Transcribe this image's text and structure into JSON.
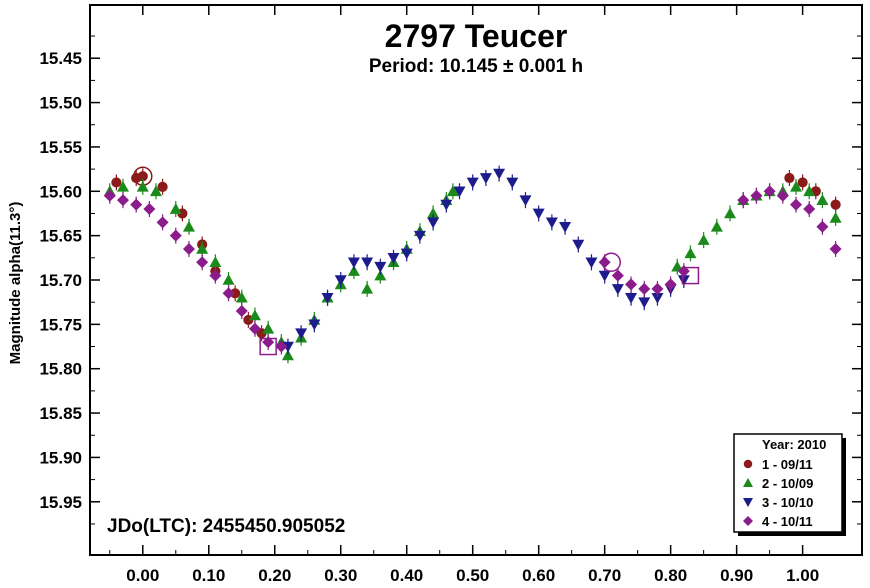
{
  "chart_data": {
    "type": "scatter",
    "title": "2797 Teucer",
    "subtitle": "Period: 10.145 ± 0.001 h",
    "xlabel": "",
    "ylabel": "Magnitude alpha(11.3°)",
    "xlim": [
      -0.08,
      1.09
    ],
    "ylim": [
      15.39,
      16.01
    ],
    "y_inverted": true,
    "xticks": [
      "0.00",
      "0.10",
      "0.20",
      "0.30",
      "0.40",
      "0.50",
      "0.60",
      "0.70",
      "0.80",
      "0.90",
      "1.00"
    ],
    "yticks": [
      "15.45",
      "15.50",
      "15.55",
      "15.60",
      "15.65",
      "15.70",
      "15.75",
      "15.80",
      "15.85",
      "15.90",
      "15.95"
    ],
    "annotation": "JDo(LTC): 2455450.905052",
    "legend": {
      "title": "Year: 2010",
      "position": "bottom-right",
      "entries": [
        "1 - 09/11",
        "2 - 10/09",
        "3 - 10/10",
        "4 - 10/11"
      ]
    },
    "series": [
      {
        "name": "1 - 09/11",
        "marker": "circle",
        "color": "#8b1a1a",
        "points": [
          [
            -0.04,
            15.59
          ],
          [
            -0.01,
            15.585
          ],
          [
            0.0,
            15.583
          ],
          [
            0.03,
            15.595
          ],
          [
            0.06,
            15.625
          ],
          [
            0.09,
            15.66
          ],
          [
            0.11,
            15.69
          ],
          [
            0.14,
            15.715
          ],
          [
            0.16,
            15.745
          ],
          [
            0.18,
            15.76
          ],
          [
            0.98,
            15.585
          ],
          [
            1.0,
            15.59
          ],
          [
            1.02,
            15.6
          ],
          [
            1.05,
            15.615
          ]
        ],
        "circled": [
          [
            0.0,
            15.583
          ]
        ]
      },
      {
        "name": "2 - 10/09",
        "marker": "triangle-up",
        "color": "#1a8a1a",
        "points": [
          [
            -0.05,
            15.6
          ],
          [
            -0.03,
            15.595
          ],
          [
            0.0,
            15.595
          ],
          [
            0.02,
            15.6
          ],
          [
            0.05,
            15.62
          ],
          [
            0.07,
            15.64
          ],
          [
            0.09,
            15.665
          ],
          [
            0.11,
            15.68
          ],
          [
            0.13,
            15.7
          ],
          [
            0.15,
            15.72
          ],
          [
            0.17,
            15.74
          ],
          [
            0.19,
            15.755
          ],
          [
            0.21,
            15.77
          ],
          [
            0.22,
            15.785
          ],
          [
            0.24,
            15.765
          ],
          [
            0.26,
            15.745
          ],
          [
            0.28,
            15.72
          ],
          [
            0.3,
            15.705
          ],
          [
            0.32,
            15.69
          ],
          [
            0.34,
            15.71
          ],
          [
            0.36,
            15.695
          ],
          [
            0.38,
            15.68
          ],
          [
            0.4,
            15.665
          ],
          [
            0.42,
            15.645
          ],
          [
            0.44,
            15.625
          ],
          [
            0.46,
            15.61
          ],
          [
            0.47,
            15.6
          ],
          [
            0.81,
            15.685
          ],
          [
            0.83,
            15.67
          ],
          [
            0.85,
            15.655
          ],
          [
            0.87,
            15.64
          ],
          [
            0.89,
            15.625
          ],
          [
            0.91,
            15.61
          ],
          [
            0.93,
            15.605
          ],
          [
            0.95,
            15.6
          ],
          [
            0.97,
            15.6
          ],
          [
            0.99,
            15.595
          ],
          [
            1.01,
            15.6
          ],
          [
            1.03,
            15.61
          ],
          [
            1.05,
            15.63
          ]
        ]
      },
      {
        "name": "3 - 10/10",
        "marker": "triangle-down",
        "color": "#1c1c8c",
        "points": [
          [
            0.22,
            15.775
          ],
          [
            0.24,
            15.76
          ],
          [
            0.26,
            15.75
          ],
          [
            0.28,
            15.72
          ],
          [
            0.3,
            15.7
          ],
          [
            0.32,
            15.68
          ],
          [
            0.34,
            15.68
          ],
          [
            0.36,
            15.685
          ],
          [
            0.38,
            15.675
          ],
          [
            0.4,
            15.67
          ],
          [
            0.42,
            15.65
          ],
          [
            0.44,
            15.635
          ],
          [
            0.46,
            15.615
          ],
          [
            0.48,
            15.6
          ],
          [
            0.5,
            15.59
          ],
          [
            0.52,
            15.585
          ],
          [
            0.54,
            15.58
          ],
          [
            0.56,
            15.59
          ],
          [
            0.58,
            15.61
          ],
          [
            0.6,
            15.625
          ],
          [
            0.62,
            15.635
          ],
          [
            0.64,
            15.64
          ],
          [
            0.66,
            15.66
          ],
          [
            0.68,
            15.68
          ],
          [
            0.7,
            15.695
          ],
          [
            0.72,
            15.71
          ],
          [
            0.74,
            15.72
          ],
          [
            0.76,
            15.725
          ],
          [
            0.78,
            15.72
          ],
          [
            0.8,
            15.71
          ],
          [
            0.82,
            15.7
          ]
        ]
      },
      {
        "name": "4 - 10/11",
        "marker": "diamond",
        "color": "#8b1c8b",
        "points": [
          [
            -0.05,
            15.605
          ],
          [
            -0.03,
            15.61
          ],
          [
            -0.01,
            15.615
          ],
          [
            0.01,
            15.62
          ],
          [
            0.03,
            15.635
          ],
          [
            0.05,
            15.65
          ],
          [
            0.07,
            15.665
          ],
          [
            0.09,
            15.68
          ],
          [
            0.11,
            15.695
          ],
          [
            0.13,
            15.715
          ],
          [
            0.15,
            15.735
          ],
          [
            0.17,
            15.755
          ],
          [
            0.19,
            15.77
          ],
          [
            0.21,
            15.775
          ],
          [
            0.7,
            15.68
          ],
          [
            0.72,
            15.695
          ],
          [
            0.74,
            15.705
          ],
          [
            0.76,
            15.71
          ],
          [
            0.78,
            15.71
          ],
          [
            0.8,
            15.705
          ],
          [
            0.82,
            15.69
          ],
          [
            0.91,
            15.61
          ],
          [
            0.93,
            15.605
          ],
          [
            0.95,
            15.6
          ],
          [
            0.97,
            15.605
          ],
          [
            0.99,
            15.615
          ],
          [
            1.01,
            15.62
          ],
          [
            1.03,
            15.64
          ],
          [
            1.05,
            15.665
          ]
        ],
        "circled": [
          [
            0.71,
            15.68
          ]
        ],
        "boxed": [
          [
            0.19,
            15.775
          ],
          [
            0.83,
            15.695
          ]
        ]
      }
    ]
  }
}
